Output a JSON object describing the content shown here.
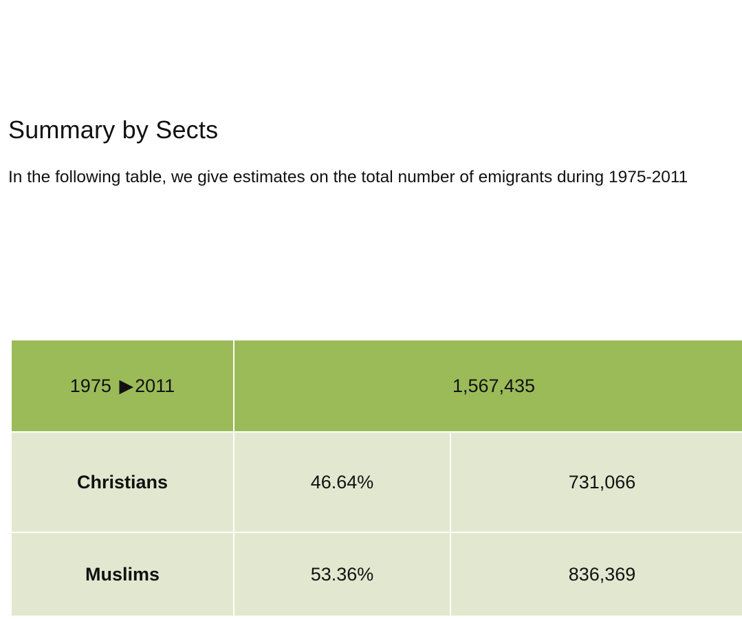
{
  "document": {
    "heading": "Summary by Sects",
    "intro": "In the following table, we give estimates on the total number of emigrants during 1975-2011"
  },
  "table": {
    "period": {
      "start": "1975",
      "arrow": "▶",
      "end": "2011"
    },
    "total": "1,567,435",
    "rows": [
      {
        "sect": "Christians",
        "percent": "46.64%",
        "count": "731,066"
      },
      {
        "sect": "Muslims",
        "percent": "53.36%",
        "count": "836,369"
      }
    ]
  },
  "colors": {
    "header_bg": "#9bbb59",
    "body_bg": "#e2e8cf",
    "border": "#ffffff"
  }
}
